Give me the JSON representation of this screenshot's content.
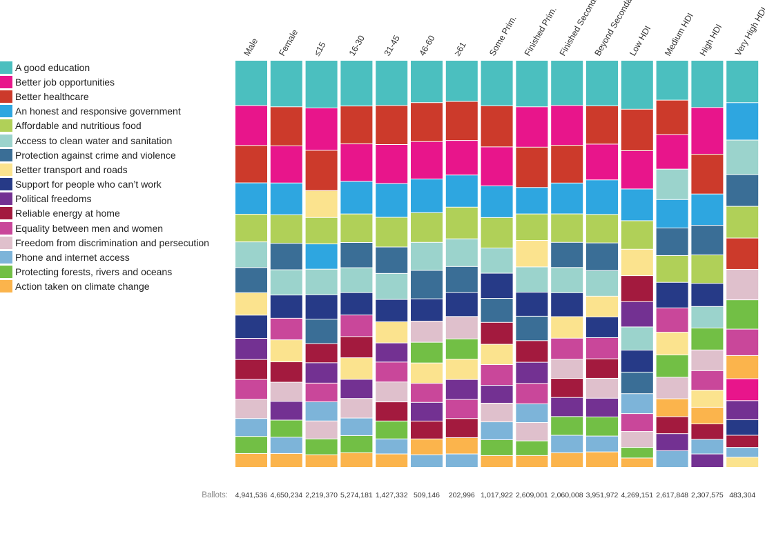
{
  "chart_data": {
    "type": "bar",
    "stacked": true,
    "normalized": true,
    "legend_position": "left",
    "grid": false,
    "categories": [
      {
        "name": "A good education",
        "color": "#4bbfbf"
      },
      {
        "name": "Better job opportunities",
        "color": "#e8158b"
      },
      {
        "name": "Better healthcare",
        "color": "#cc3a2b"
      },
      {
        "name": "An honest and responsive government",
        "color": "#2ea6e0"
      },
      {
        "name": "Affordable and nutritious food",
        "color": "#b0d058"
      },
      {
        "name": "Access to clean water and sanitation",
        "color": "#9bd3cc"
      },
      {
        "name": "Protection against crime and violence",
        "color": "#3a6e96"
      },
      {
        "name": "Better transport and roads",
        "color": "#fbe38e"
      },
      {
        "name": "Support for people who can’t work",
        "color": "#263a87"
      },
      {
        "name": "Political freedoms",
        "color": "#733192"
      },
      {
        "name": "Reliable energy at home",
        "color": "#a31a3e"
      },
      {
        "name": "Equality between men and women",
        "color": "#c9479a"
      },
      {
        "name": "Freedom from discrimination and persecution",
        "color": "#dfc0cc"
      },
      {
        "name": "Phone and internet access",
        "color": "#7db4d9"
      },
      {
        "name": "Protecting forests, rivers and oceans",
        "color": "#72bf45"
      },
      {
        "name": "Action taken on climate change",
        "color": "#fbb44c"
      }
    ],
    "ballots_label": "Ballots:",
    "groups": [
      {
        "label": "Male",
        "ballots": "4,941,536",
        "order": [
          0,
          1,
          2,
          3,
          4,
          5,
          6,
          7,
          8,
          9,
          10,
          11,
          12,
          13,
          14,
          15
        ],
        "values": [
          11.1,
          9.8,
          9.2,
          7.7,
          6.8,
          6.3,
          6.2,
          5.5,
          5.7,
          5.2,
          4.9,
          4.9,
          4.7,
          4.4,
          4.2,
          3.4
        ]
      },
      {
        "label": "Female",
        "ballots": "4,650,234",
        "order": [
          0,
          2,
          1,
          3,
          4,
          6,
          5,
          8,
          11,
          7,
          10,
          12,
          9,
          14,
          13,
          15
        ],
        "values": [
          11.4,
          9.6,
          9.1,
          7.8,
          7.0,
          6.5,
          6.2,
          5.7,
          5.3,
          5.4,
          5.0,
          4.7,
          4.6,
          4.2,
          4.0,
          3.4
        ]
      },
      {
        "label": "≤15",
        "ballots": "2,219,370",
        "order": [
          0,
          1,
          2,
          7,
          4,
          3,
          5,
          8,
          6,
          10,
          9,
          11,
          13,
          12,
          14,
          15
        ],
        "values": [
          11.7,
          10.4,
          9.9,
          6.6,
          6.5,
          6.2,
          6.3,
          6.0,
          6.0,
          4.7,
          5.0,
          4.6,
          4.7,
          4.4,
          3.9,
          3.1
        ]
      },
      {
        "label": "16-30",
        "ballots": "5,274,181",
        "order": [
          0,
          2,
          1,
          3,
          4,
          6,
          5,
          8,
          11,
          10,
          7,
          9,
          12,
          13,
          14,
          15
        ],
        "values": [
          11.2,
          9.3,
          9.2,
          8.0,
          7.0,
          6.2,
          6.1,
          5.5,
          5.3,
          5.2,
          5.3,
          4.7,
          4.8,
          4.3,
          4.2,
          3.6
        ]
      },
      {
        "label": "31-45",
        "ballots": "1,427,332",
        "order": [
          0,
          2,
          1,
          3,
          4,
          6,
          5,
          8,
          7,
          9,
          11,
          12,
          10,
          14,
          13,
          15
        ],
        "values": [
          11.1,
          9.6,
          9.6,
          8.3,
          7.3,
          6.5,
          6.4,
          5.5,
          5.2,
          4.7,
          4.9,
          4.9,
          4.7,
          4.4,
          3.7,
          3.3
        ]
      },
      {
        "label": "46-60",
        "ballots": "509,146",
        "order": [
          0,
          2,
          1,
          3,
          4,
          5,
          6,
          8,
          12,
          14,
          7,
          11,
          9,
          10,
          15,
          13
        ],
        "values": [
          10.4,
          9.6,
          9.2,
          8.3,
          7.3,
          6.9,
          7.0,
          5.5,
          5.2,
          5.1,
          5.0,
          4.7,
          4.6,
          4.4,
          3.9,
          3.1
        ]
      },
      {
        "label": "≥61",
        "ballots": "202,996",
        "order": [
          0,
          2,
          1,
          3,
          4,
          5,
          6,
          8,
          12,
          14,
          7,
          9,
          11,
          10,
          15,
          13
        ],
        "values": [
          10.1,
          9.6,
          8.5,
          7.9,
          7.8,
          6.8,
          6.4,
          5.9,
          5.5,
          5.0,
          5.0,
          4.9,
          4.7,
          4.7,
          4.0,
          3.3
        ]
      },
      {
        "label": "Some Prim.",
        "ballots": "1,017,922",
        "order": [
          0,
          2,
          1,
          3,
          4,
          5,
          8,
          6,
          10,
          7,
          11,
          9,
          12,
          13,
          14,
          15
        ],
        "values": [
          11.2,
          10.1,
          9.6,
          7.8,
          7.5,
          6.2,
          6.2,
          5.9,
          5.4,
          5.0,
          5.1,
          4.4,
          4.6,
          4.4,
          3.9,
          2.9
        ]
      },
      {
        "label": "Finished Prim.",
        "ballots": "2,609,001",
        "order": [
          0,
          1,
          2,
          3,
          4,
          7,
          5,
          8,
          6,
          10,
          9,
          11,
          13,
          12,
          14,
          15
        ],
        "values": [
          11.4,
          9.9,
          9.9,
          6.5,
          6.5,
          6.5,
          6.2,
          5.9,
          6.0,
          5.3,
          5.2,
          5.0,
          4.6,
          4.5,
          3.6,
          2.9
        ]
      },
      {
        "label": "Finished Secondary",
        "ballots": "2,060,008",
        "order": [
          0,
          1,
          2,
          3,
          4,
          6,
          5,
          8,
          7,
          11,
          12,
          10,
          9,
          14,
          13,
          15
        ],
        "values": [
          11.1,
          9.8,
          9.3,
          7.6,
          7.0,
          6.2,
          6.2,
          5.9,
          5.3,
          5.2,
          4.7,
          4.7,
          4.7,
          4.6,
          4.3,
          3.6
        ]
      },
      {
        "label": "Beyond Secondary",
        "ballots": "3,951,972",
        "order": [
          0,
          2,
          1,
          3,
          4,
          6,
          5,
          7,
          8,
          11,
          10,
          12,
          9,
          14,
          13,
          15
        ],
        "values": [
          11.2,
          9.4,
          8.8,
          8.5,
          7.0,
          6.8,
          6.3,
          5.1,
          5.1,
          5.2,
          4.8,
          4.9,
          4.6,
          4.7,
          3.9,
          3.8
        ]
      },
      {
        "label": "Low HDI",
        "ballots": "4,269,151",
        "order": [
          0,
          2,
          1,
          3,
          4,
          7,
          10,
          9,
          5,
          8,
          6,
          13,
          11,
          12,
          14,
          15
        ],
        "values": [
          12.0,
          10.2,
          9.4,
          7.8,
          7.0,
          6.5,
          6.4,
          6.2,
          5.7,
          5.4,
          5.3,
          4.9,
          4.4,
          3.9,
          2.6,
          2.3
        ]
      },
      {
        "label": "Medium HDI",
        "ballots": "2,617,848",
        "order": [
          0,
          2,
          1,
          5,
          3,
          6,
          4,
          8,
          11,
          7,
          14,
          12,
          15,
          10,
          9,
          13
        ],
        "values": [
          9.8,
          8.5,
          8.5,
          7.5,
          7.0,
          6.8,
          6.6,
          6.3,
          6.0,
          5.6,
          5.5,
          5.3,
          4.4,
          4.2,
          4.2,
          4.1
        ]
      },
      {
        "label": "High HDI",
        "ballots": "2,307,575",
        "order": [
          0,
          1,
          2,
          3,
          6,
          4,
          8,
          5,
          14,
          12,
          11,
          7,
          15,
          10,
          13,
          9
        ],
        "values": [
          11.6,
          11.5,
          9.8,
          7.7,
          7.3,
          7.0,
          5.7,
          5.3,
          5.4,
          5.1,
          4.8,
          4.2,
          4.1,
          3.8,
          3.6,
          3.3
        ]
      },
      {
        "label": "Very High HDI",
        "ballots": "483,304",
        "order": [
          0,
          3,
          5,
          6,
          4,
          2,
          12,
          14,
          11,
          15,
          1,
          9,
          8,
          10,
          13,
          7
        ],
        "values": [
          10.4,
          9.2,
          8.5,
          7.8,
          7.8,
          7.7,
          7.5,
          7.2,
          6.5,
          5.7,
          5.4,
          4.7,
          3.8,
          3.0,
          2.4,
          2.5
        ]
      }
    ]
  }
}
